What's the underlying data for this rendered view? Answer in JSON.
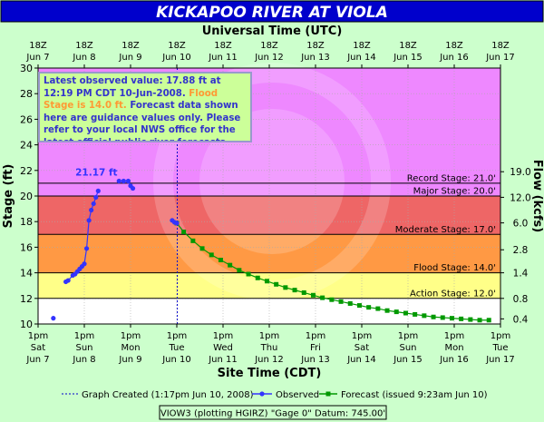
{
  "title": "KICKAPOO RIVER  AT VIOLA",
  "top_axis_label": "Universal Time (UTC)",
  "top_ticks": [
    {
      "l1": "18Z",
      "l2": "Jun 7"
    },
    {
      "l1": "18Z",
      "l2": "Jun 8"
    },
    {
      "l1": "18Z",
      "l2": "Jun 9"
    },
    {
      "l1": "18Z",
      "l2": "Jun 10"
    },
    {
      "l1": "18Z",
      "l2": "Jun 11"
    },
    {
      "l1": "18Z",
      "l2": "Jun 12"
    },
    {
      "l1": "18Z",
      "l2": "Jun 13"
    },
    {
      "l1": "18Z",
      "l2": "Jun 14"
    },
    {
      "l1": "18Z",
      "l2": "Jun 15"
    },
    {
      "l1": "18Z",
      "l2": "Jun 16"
    },
    {
      "l1": "18Z",
      "l2": "Jun 17"
    }
  ],
  "bottom_ticks": [
    {
      "l1": "1pm",
      "l2": "Sat",
      "l3": "Jun 7"
    },
    {
      "l1": "1pm",
      "l2": "Sun",
      "l3": "Jun 8"
    },
    {
      "l1": "1pm",
      "l2": "Mon",
      "l3": "Jun 9"
    },
    {
      "l1": "1pm",
      "l2": "Tue",
      "l3": "Jun 10"
    },
    {
      "l1": "1pm",
      "l2": "Wed",
      "l3": "Jun 11"
    },
    {
      "l1": "1pm",
      "l2": "Thu",
      "l3": "Jun 12"
    },
    {
      "l1": "1pm",
      "l2": "Fri",
      "l3": "Jun 13"
    },
    {
      "l1": "1pm",
      "l2": "Sat",
      "l3": "Jun 14"
    },
    {
      "l1": "1pm",
      "l2": "Sun",
      "l3": "Jun 15"
    },
    {
      "l1": "1pm",
      "l2": "Mon",
      "l3": "Jun 16"
    },
    {
      "l1": "1pm",
      "l2": "Tue",
      "l3": "Jun 17"
    }
  ],
  "xlabel": "Site Time (CDT)",
  "ylabel": "Stage (ft)",
  "y2label": "Flow (kcfs)",
  "note": {
    "part1": "Latest observed value: 17.88 ft at 12:19 PM CDT 10-Jun-2008.",
    "part2": "Flood Stage is 14.0 ft.",
    "part3": "Forecast data shown here are guidance values only. Please refer to your local NWS office for the latest official public river forecasts."
  },
  "legend": {
    "created": "Graph Created (1:17pm Jun 10, 2008)",
    "observed": "Observed",
    "forecast": "Forecast (issued 9:23am Jun 10)"
  },
  "footer": "VIOW3 (plotting HGIRZ)  \"Gage 0\" Datum: 745.00'",
  "colors": {
    "observed": "#3333ff",
    "forecast": "#009900",
    "record_band": "#ee88ff",
    "major_band": "#ee6666",
    "moderate_band": "#ff9944",
    "flood_band": "#ffcc55",
    "action_band": "#ffff88",
    "normal_band": "#ffffff",
    "title_bg": "#0000cc",
    "background": "#ccffcc",
    "note_text": "#3333cc",
    "note_flood": "#ff9933"
  },
  "chart_data": {
    "type": "line",
    "x_unit": "days since 1pm CDT Jun 7 2008",
    "xlim": [
      0,
      10
    ],
    "ylim": [
      10,
      30
    ],
    "y_ticks": [
      10,
      12,
      14,
      16,
      18,
      20,
      22,
      24,
      26,
      28,
      30
    ],
    "y2_ticks": [
      {
        "stage": 10.4,
        "label": "0.4"
      },
      {
        "stage": 12.0,
        "label": "0.8"
      },
      {
        "stage": 14.0,
        "label": "1.4"
      },
      {
        "stage": 15.8,
        "label": "2.8"
      },
      {
        "stage": 17.9,
        "label": "6.0"
      },
      {
        "stage": 19.9,
        "label": "12.0"
      },
      {
        "stage": 21.9,
        "label": "19.0"
      }
    ],
    "stages": [
      {
        "name": "Record Stage: 21.0'",
        "value": 21.0
      },
      {
        "name": "Major Stage: 20.0'",
        "value": 20.0
      },
      {
        "name": "Moderate Stage: 17.0'",
        "value": 17.0
      },
      {
        "name": "Flood Stage: 14.0'",
        "value": 14.0
      },
      {
        "name": "Action Stage: 12.0'",
        "value": 12.0
      }
    ],
    "crest_label": "21.17 ft",
    "crest": {
      "x": 1.85,
      "y": 21.17
    },
    "graph_created_x": 3.01,
    "series": [
      {
        "name": "Observed",
        "segments": [
          [
            [
              0.33,
              10.45
            ]
          ],
          [
            [
              0.6,
              13.3
            ],
            [
              0.65,
              13.4
            ],
            [
              0.75,
              13.8
            ],
            [
              0.8,
              13.9
            ],
            [
              0.85,
              14.1
            ],
            [
              0.9,
              14.3
            ],
            [
              0.95,
              14.5
            ],
            [
              1.0,
              14.7
            ],
            [
              1.05,
              15.9
            ],
            [
              1.1,
              18.1
            ],
            [
              1.15,
              18.9
            ],
            [
              1.2,
              19.4
            ],
            [
              1.25,
              19.9
            ],
            [
              1.3,
              20.4
            ]
          ],
          [
            [
              1.75,
              21.17
            ],
            [
              1.85,
              21.17
            ],
            [
              1.95,
              21.17
            ],
            [
              2.0,
              20.8
            ],
            [
              2.05,
              20.6
            ]
          ],
          [
            [
              2.9,
              18.1
            ],
            [
              2.95,
              17.95
            ],
            [
              3.0,
              17.88
            ]
          ]
        ]
      },
      {
        "name": "Forecast",
        "points": [
          [
            3.0,
            17.88
          ],
          [
            3.15,
            17.2
          ],
          [
            3.35,
            16.5
          ],
          [
            3.55,
            15.9
          ],
          [
            3.75,
            15.4
          ],
          [
            3.95,
            15.0
          ],
          [
            4.15,
            14.6
          ],
          [
            4.35,
            14.2
          ],
          [
            4.55,
            13.9
          ],
          [
            4.75,
            13.6
          ],
          [
            4.95,
            13.35
          ],
          [
            5.15,
            13.1
          ],
          [
            5.35,
            12.85
          ],
          [
            5.55,
            12.65
          ],
          [
            5.75,
            12.45
          ],
          [
            5.95,
            12.25
          ],
          [
            6.15,
            12.05
          ],
          [
            6.35,
            11.9
          ],
          [
            6.55,
            11.75
          ],
          [
            6.75,
            11.6
          ],
          [
            6.95,
            11.45
          ],
          [
            7.15,
            11.3
          ],
          [
            7.35,
            11.2
          ],
          [
            7.55,
            11.05
          ],
          [
            7.75,
            10.95
          ],
          [
            7.95,
            10.85
          ],
          [
            8.15,
            10.75
          ],
          [
            8.35,
            10.65
          ],
          [
            8.55,
            10.55
          ],
          [
            8.75,
            10.5
          ],
          [
            8.95,
            10.45
          ],
          [
            9.15,
            10.4
          ],
          [
            9.35,
            10.35
          ],
          [
            9.55,
            10.3
          ],
          [
            9.75,
            10.3
          ]
        ]
      }
    ]
  }
}
